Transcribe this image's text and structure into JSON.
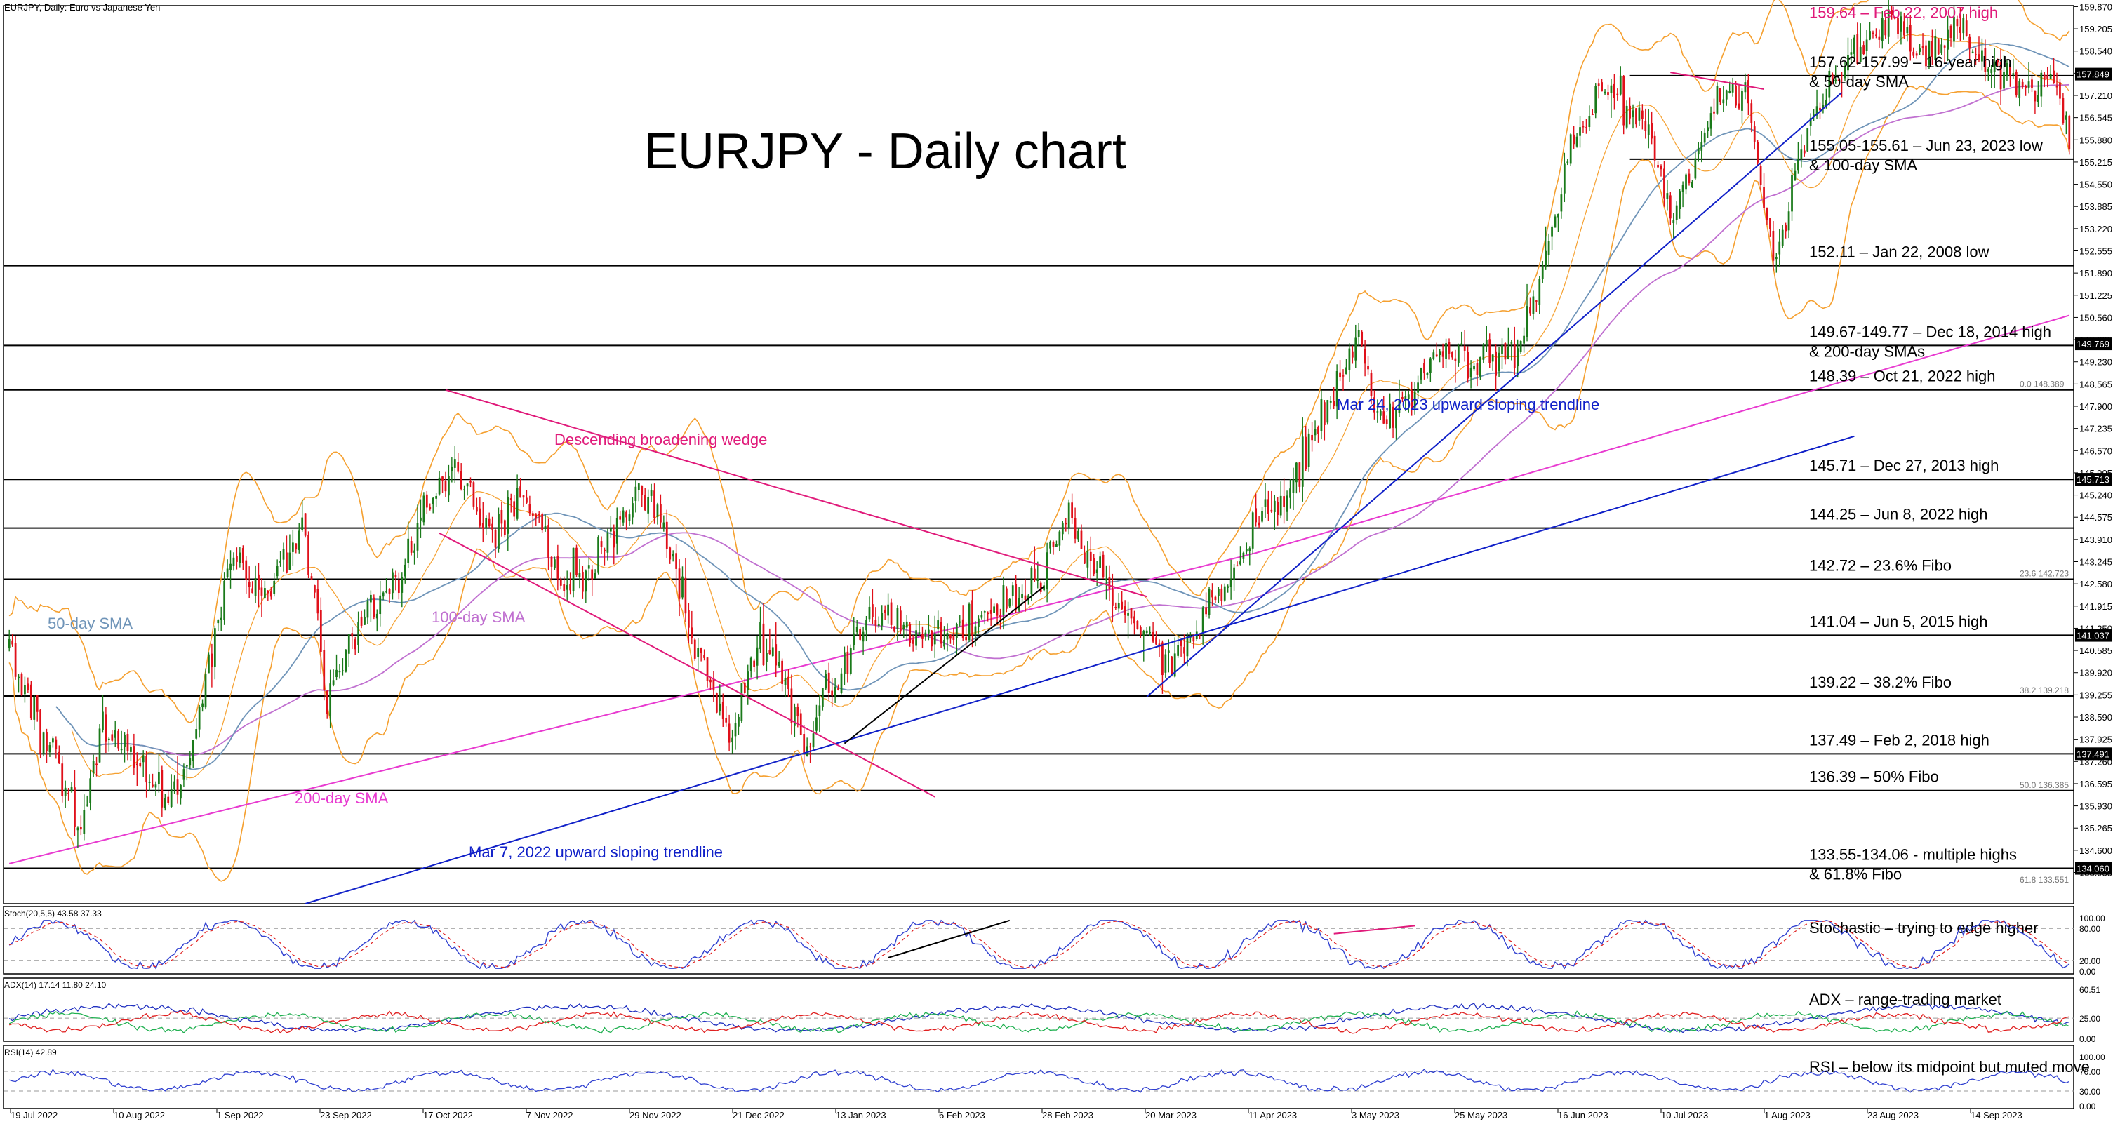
{
  "header": {
    "symbol_line": "EURJPY, Daily:  Euro vs Japanese Yen",
    "title": "EURJPY - Daily chart"
  },
  "colors": {
    "candle_up": "#1a7a1a",
    "candle_down": "#e0101a",
    "level_line": "#000000",
    "band": "#f5a030",
    "sma50": "#6f94b8",
    "sma100": "#c070d0",
    "sma200": "#e83ad0",
    "trend_blue": "#1020c8",
    "wedge_pink": "#e01a7a",
    "annot_pink": "#e01a7a",
    "stoch_main": "#3040d0",
    "stoch_signal": "#e02020",
    "adx_main": "#2030c0",
    "adx_plus": "#20b050",
    "adx_minus": "#e02020",
    "rsi": "#3040d0"
  },
  "chart_data": {
    "type": "candlestick",
    "title": "EURJPY - Daily chart",
    "ylim": [
      133.0,
      159.9
    ],
    "y_ticks": [
      "159.870",
      "159.205",
      "158.540",
      "157.875",
      "157.210",
      "156.545",
      "155.880",
      "155.215",
      "154.550",
      "153.885",
      "153.220",
      "152.555",
      "151.890",
      "151.225",
      "150.560",
      "149.895",
      "149.230",
      "148.565",
      "147.900",
      "147.235",
      "146.570",
      "145.905",
      "145.240",
      "144.575",
      "143.910",
      "143.245",
      "142.580",
      "141.915",
      "141.250",
      "140.585",
      "139.920",
      "139.255",
      "138.590",
      "137.925",
      "137.260",
      "136.595",
      "135.930",
      "135.265",
      "134.600",
      "133.935"
    ],
    "x_ticks": [
      "19 Jul 2022",
      "10 Aug 2022",
      "1 Sep 2022",
      "23 Sep 2022",
      "17 Oct 2022",
      "7 Nov 2022",
      "29 Nov 2022",
      "21 Dec 2022",
      "13 Jan 2023",
      "6 Feb 2023",
      "28 Feb 2023",
      "20 Mar 2023",
      "11 Apr 2023",
      "3 May 2023",
      "25 May 2023",
      "16 Jun 2023",
      "10 Jul 2023",
      "1 Aug 2023",
      "23 Aug 2023",
      "14 Sep 2023"
    ],
    "price_path": [
      [
        0,
        140.6
      ],
      [
        15,
        137.2
      ],
      [
        22,
        135.2
      ],
      [
        30,
        138.3
      ],
      [
        45,
        136.7
      ],
      [
        55,
        136.4
      ],
      [
        62,
        139.1
      ],
      [
        72,
        143.7
      ],
      [
        82,
        142.3
      ],
      [
        95,
        144.4
      ],
      [
        102,
        139.1
      ],
      [
        112,
        141.3
      ],
      [
        125,
        142.8
      ],
      [
        132,
        144.7
      ],
      [
        142,
        145.9
      ],
      [
        155,
        144.0
      ],
      [
        165,
        145.2
      ],
      [
        175,
        143.1
      ],
      [
        185,
        142.7
      ],
      [
        195,
        144.6
      ],
      [
        205,
        145.3
      ],
      [
        212,
        143.7
      ],
      [
        220,
        140.6
      ],
      [
        232,
        138.1
      ],
      [
        240,
        141.1
      ],
      [
        255,
        137.8
      ],
      [
        275,
        141.7
      ],
      [
        300,
        140.9
      ],
      [
        320,
        142.1
      ],
      [
        330,
        142.5
      ],
      [
        340,
        144.7
      ],
      [
        352,
        142.4
      ],
      [
        362,
        141.1
      ],
      [
        372,
        140.3
      ],
      [
        382,
        141.3
      ],
      [
        392,
        142.9
      ],
      [
        402,
        144.6
      ],
      [
        412,
        145.7
      ],
      [
        422,
        147.8
      ],
      [
        432,
        150.1
      ],
      [
        440,
        147.3
      ],
      [
        450,
        148.6
      ],
      [
        460,
        149.6
      ],
      [
        470,
        149.1
      ],
      [
        485,
        149.7
      ],
      [
        493,
        152.6
      ],
      [
        500,
        155.1
      ],
      [
        510,
        157.5
      ],
      [
        520,
        157.1
      ],
      [
        535,
        153.6
      ],
      [
        548,
        156.9
      ],
      [
        557,
        157.3
      ],
      [
        566,
        152.3
      ],
      [
        575,
        155.6
      ],
      [
        585,
        157.7
      ],
      [
        595,
        158.9
      ],
      [
        605,
        159.4
      ],
      [
        615,
        158.2
      ],
      [
        625,
        159.4
      ],
      [
        635,
        158.0
      ],
      [
        645,
        157.4
      ],
      [
        655,
        157.8
      ],
      [
        660,
        156.1
      ]
    ],
    "annotations": [
      {
        "label": "159.64 – Feb 22, 2007 high",
        "value": 159.64,
        "color": "pink"
      },
      {
        "label": "157.62-157.99 – 16-year high\n& 50-day SMA",
        "value": 157.8
      },
      {
        "label": "155.05-155.61 – Jun 23, 2023 low\n& 100-day SMA",
        "value": 155.3
      },
      {
        "label": "152.11 – Jan 22, 2008 low",
        "value": 152.11
      },
      {
        "label": "149.67-149.77 – Dec 18, 2014 high\n& 200-day SMAs",
        "value": 149.72
      },
      {
        "label": "148.39 – Oct 21, 2022 high",
        "value": 148.39
      },
      {
        "label": "145.71 – Dec 27, 2013 high",
        "value": 145.71
      },
      {
        "label": "144.25 – Jun 8, 2022 high",
        "value": 144.25
      },
      {
        "label": "142.72 – 23.6% Fibo",
        "value": 142.72
      },
      {
        "label": "141.04 – Jun 5, 2015 high",
        "value": 141.04
      },
      {
        "label": "139.22 – 38.2% Fibo",
        "value": 139.22
      },
      {
        "label": "137.49 – Feb 2, 2018 high",
        "value": 137.49
      },
      {
        "label": "136.39 – 50% Fibo",
        "value": 136.39
      },
      {
        "label": "133.55-134.06 - multiple highs\n& 61.8% Fibo",
        "value": 134.06
      }
    ],
    "axis_price_tags": [
      "157.849",
      "149.769",
      "145.713",
      "141.037",
      "137.491",
      "134.060"
    ],
    "fib_labels": [
      "0.0 148.389",
      "23.6 142.723",
      "38.2 139.218",
      "50.0 136.385",
      "61.8 133.551"
    ],
    "series_labels": [
      "50-day SMA",
      "100-day SMA",
      "200-day SMA"
    ],
    "trendline_labels": [
      "Descending broadening wedge",
      "Mar 24, 2023 upward sloping trendline",
      "Mar 7, 2022 upward sloping trendline"
    ]
  },
  "indicators": {
    "stoch": {
      "header": "Stoch(20,5,5) 43.58 37.33",
      "ticks": [
        "100.00",
        "80.00",
        "20.00",
        "0.00"
      ],
      "comment": "Stochastic –  trying to edge higher"
    },
    "adx": {
      "header": "ADX(14) 17.14 11.80 24.10",
      "ticks": [
        "60.51",
        "25.00",
        "0.00"
      ],
      "comment": "ADX – range-trading market"
    },
    "rsi": {
      "header": "RSI(14) 42.89",
      "ticks": [
        "100.00",
        "70.00",
        "30.00",
        "0.00"
      ],
      "comment": "RSI – below its midpoint but muted move"
    }
  }
}
